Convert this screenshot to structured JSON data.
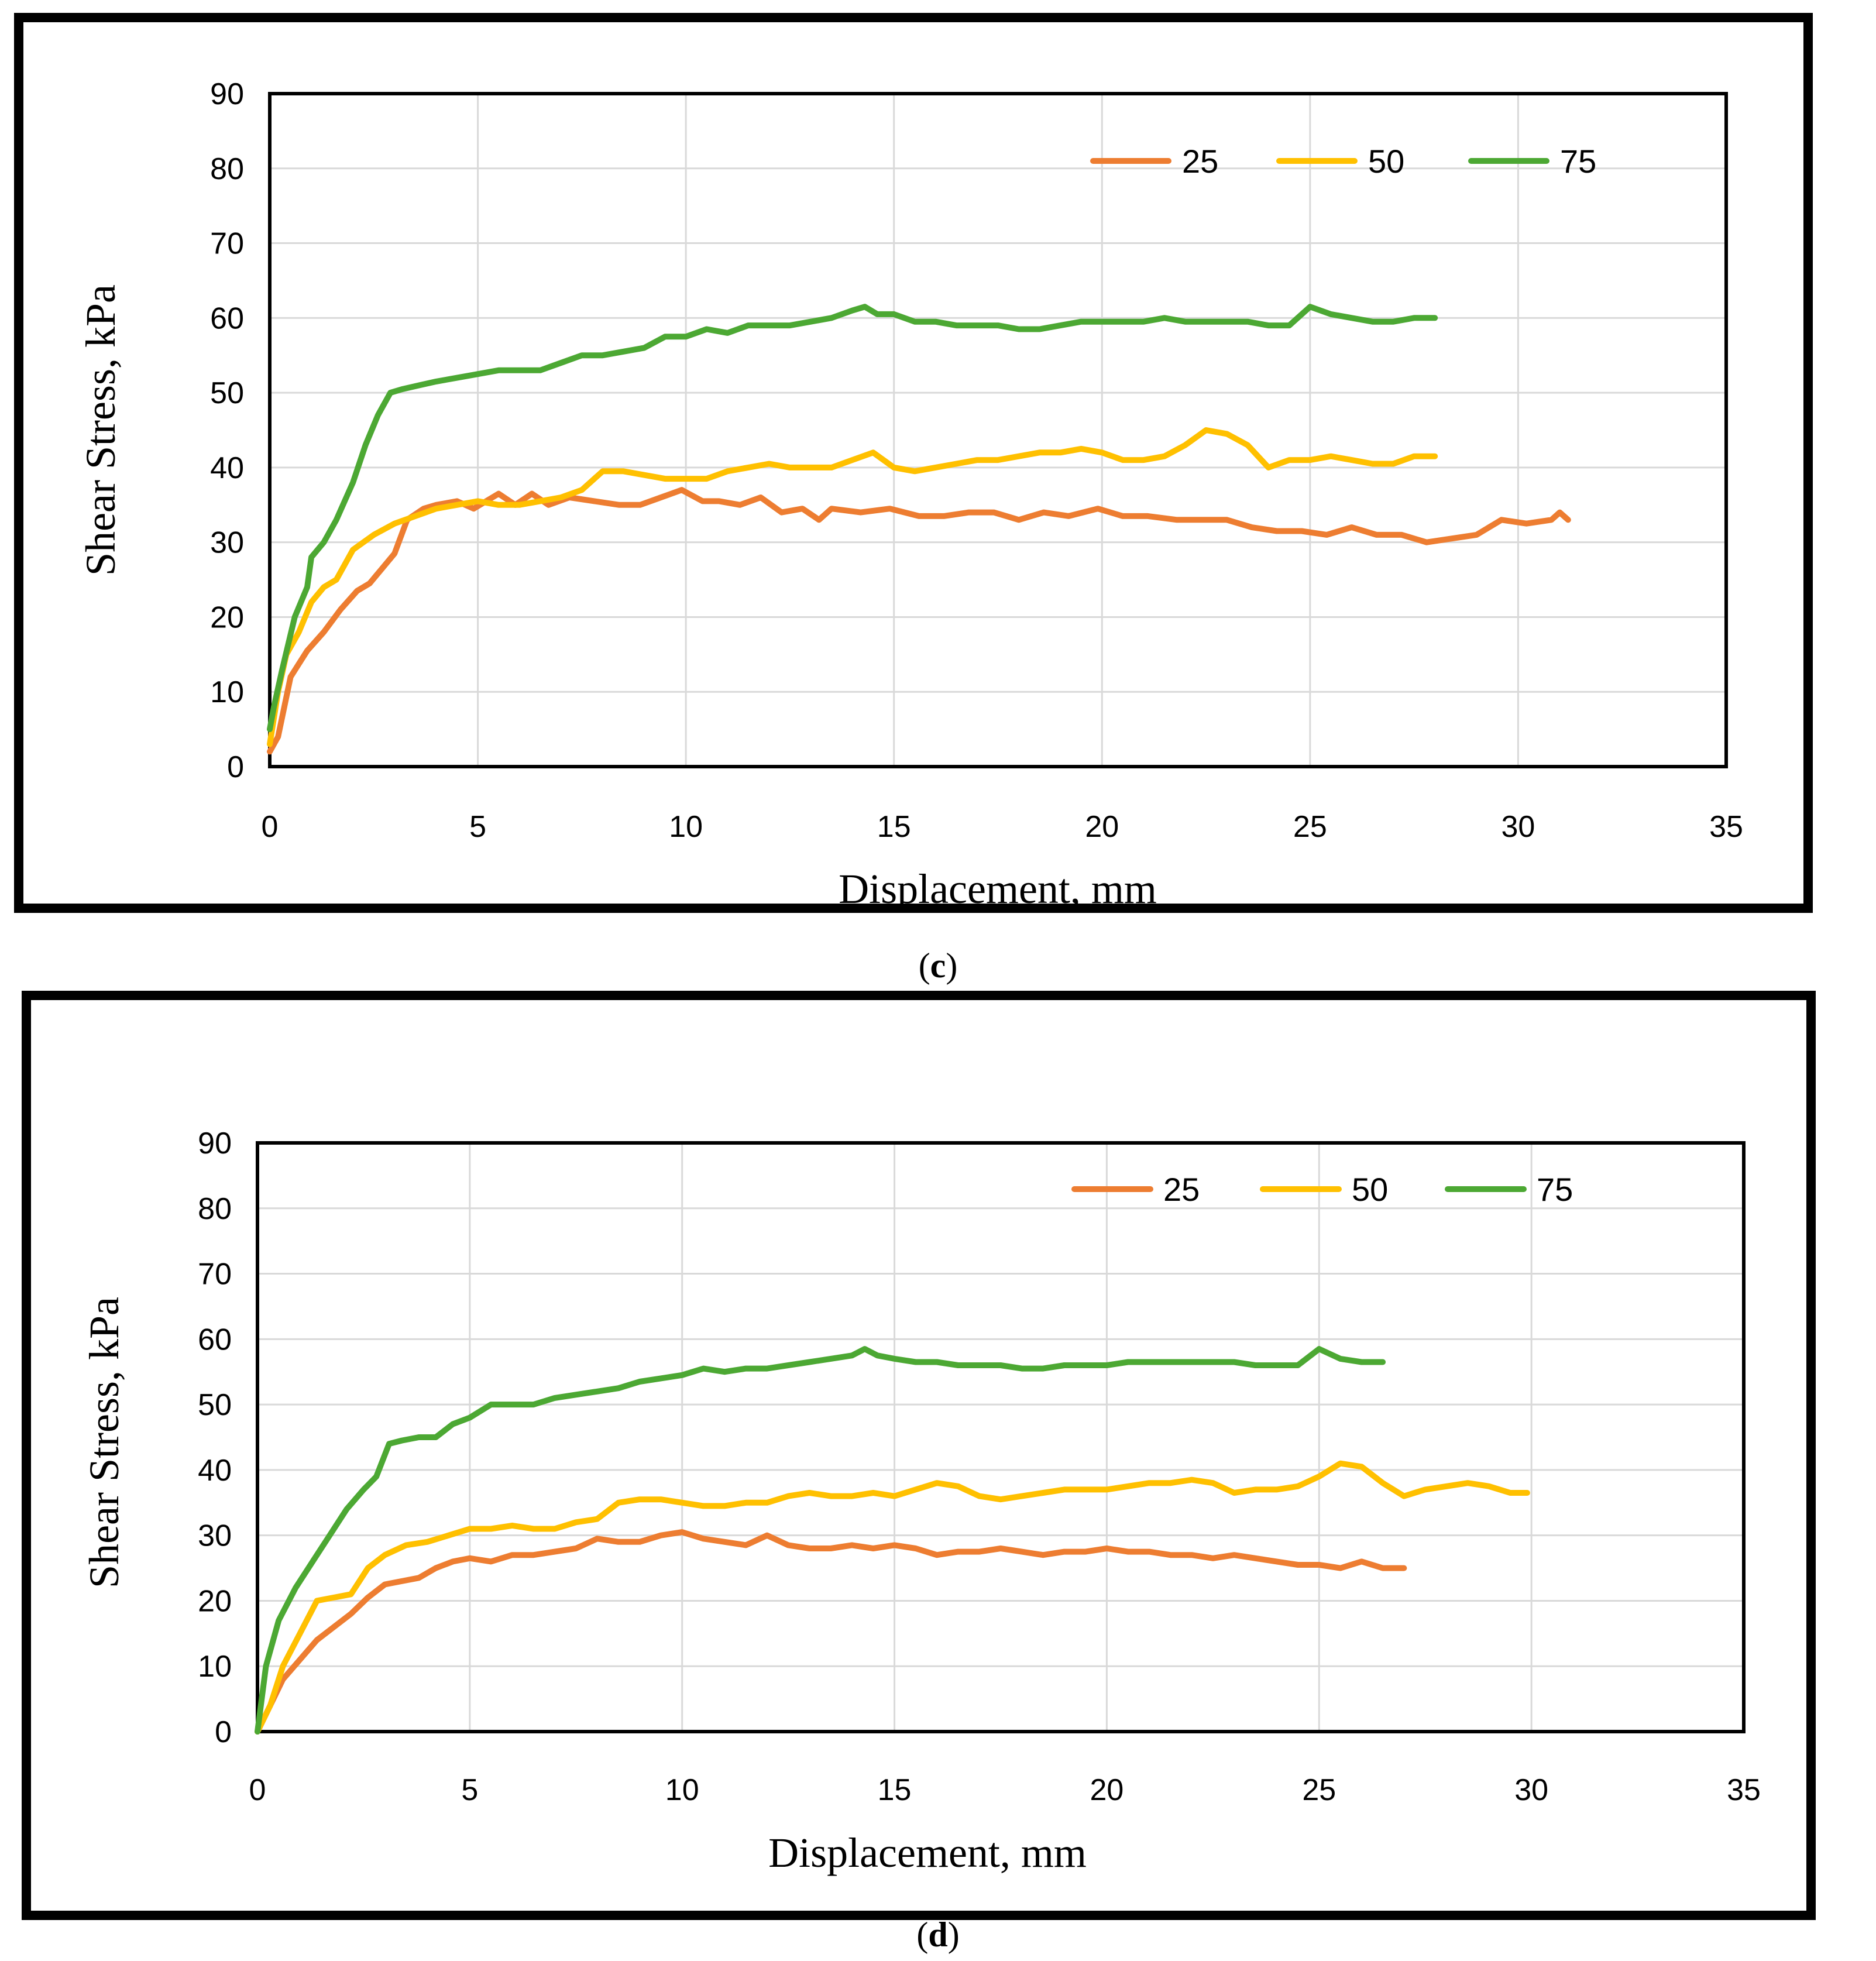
{
  "colors": {
    "s25": "#ED7D31",
    "s50": "#FFC000",
    "s75": "#4CA833"
  },
  "chart_data": [
    {
      "type": "line",
      "caption_open": "(",
      "caption_letter": "c",
      "caption_close": ")",
      "title": "",
      "xlabel": "Displacement, mm",
      "ylabel": "Shear Stress, kPa",
      "xlim": [
        0,
        35
      ],
      "ylim": [
        0,
        90
      ],
      "xticks": [
        "0",
        "5",
        "10",
        "15",
        "20",
        "25",
        "30",
        "35"
      ],
      "yticks": [
        "0",
        "10",
        "20",
        "30",
        "40",
        "50",
        "60",
        "70",
        "80",
        "90"
      ],
      "grid": "vertical and horizontal",
      "legend_position": "top-right",
      "series": [
        {
          "name": "25",
          "color": "#ED7D31",
          "x": [
            0,
            0.2,
            0.5,
            0.9,
            1.3,
            1.7,
            2.1,
            2.4,
            2.7,
            3.0,
            3.3,
            3.7,
            4.0,
            4.5,
            4.9,
            5.5,
            5.9,
            6.3,
            6.7,
            7.2,
            7.8,
            8.4,
            8.9,
            9.4,
            9.9,
            10.4,
            10.8,
            11.3,
            11.8,
            12.3,
            12.8,
            13.2,
            13.5,
            14.2,
            14.9,
            15.6,
            16.2,
            16.8,
            17.4,
            18.0,
            18.6,
            19.2,
            19.9,
            20.5,
            21.1,
            21.8,
            22.4,
            23.0,
            23.6,
            24.2,
            24.8,
            25.4,
            26.0,
            26.6,
            27.2,
            27.8,
            28.4,
            29.0,
            29.6,
            30.2,
            30.8,
            31.0,
            31.2
          ],
          "y": [
            2,
            4,
            12,
            15.5,
            18,
            21,
            23.5,
            24.5,
            26.5,
            28.5,
            33,
            34.5,
            35,
            35.5,
            34.5,
            36.5,
            35,
            36.5,
            35,
            36,
            35.5,
            35,
            35,
            36,
            37,
            35.5,
            35.5,
            35,
            36,
            34,
            34.5,
            33,
            34.5,
            34,
            34.5,
            33.5,
            33.5,
            34,
            34,
            33,
            34,
            33.5,
            34.5,
            33.5,
            33.5,
            33,
            33,
            33,
            32,
            31.5,
            31.5,
            31,
            32,
            31,
            31,
            30,
            30.5,
            31,
            33,
            32.5,
            33,
            34,
            33
          ]
        },
        {
          "name": "50",
          "color": "#FFC000",
          "x": [
            0,
            0.2,
            0.4,
            0.7,
            1.0,
            1.3,
            1.6,
            2.0,
            2.5,
            3.0,
            3.5,
            4.0,
            4.5,
            5.0,
            5.5,
            6.0,
            6.5,
            7.0,
            7.5,
            8.0,
            8.5,
            9.0,
            9.5,
            10.0,
            10.5,
            11.0,
            11.5,
            12.0,
            12.5,
            13.0,
            13.5,
            14.0,
            14.5,
            15.0,
            15.5,
            16.0,
            16.5,
            17.0,
            17.5,
            18.0,
            18.5,
            19.0,
            19.5,
            20.0,
            20.5,
            21.0,
            21.5,
            22.0,
            22.5,
            23.0,
            23.5,
            24.0,
            24.5,
            25.0,
            25.5,
            26.0,
            26.5,
            27.0,
            27.5,
            28.0
          ],
          "y": [
            3,
            10,
            15,
            18,
            22,
            24,
            25,
            29,
            31,
            32.5,
            33.5,
            34.5,
            35,
            35.5,
            35,
            35,
            35.5,
            36,
            37,
            39.5,
            39.5,
            39,
            38.5,
            38.5,
            38.5,
            39.5,
            40,
            40.5,
            40,
            40,
            40,
            41,
            42,
            40,
            39.5,
            40,
            40.5,
            41,
            41,
            41.5,
            42,
            42,
            42.5,
            42,
            41,
            41,
            41.5,
            43,
            45,
            44.5,
            43,
            40,
            41,
            41,
            41.5,
            41,
            40.5,
            40.5,
            41.5,
            41.5
          ]
        },
        {
          "name": "75",
          "color": "#4CA833",
          "x": [
            0,
            0.1,
            0.3,
            0.6,
            0.9,
            1.0,
            1.3,
            1.6,
            2.0,
            2.3,
            2.6,
            2.9,
            3.2,
            3.6,
            4.0,
            4.5,
            5.0,
            5.5,
            6.0,
            6.5,
            7.0,
            7.5,
            8.0,
            8.5,
            9.0,
            9.5,
            10.0,
            10.5,
            11.0,
            11.5,
            12.0,
            12.5,
            13.0,
            13.5,
            14.0,
            14.3,
            14.6,
            15.0,
            15.5,
            16.0,
            16.5,
            17.0,
            17.5,
            18.0,
            18.5,
            19.0,
            19.5,
            20.0,
            20.5,
            21.0,
            21.5,
            22.0,
            22.5,
            23.0,
            23.5,
            24.0,
            24.5,
            25.0,
            25.5,
            26.0,
            26.5,
            27.0,
            27.5,
            28.0
          ],
          "y": [
            5,
            8,
            13,
            20,
            24,
            28,
            30,
            33,
            38,
            43,
            47,
            50,
            50.5,
            51,
            51.5,
            52,
            52.5,
            53,
            53,
            53,
            54,
            55,
            55,
            55.5,
            56,
            57.5,
            57.5,
            58.5,
            58,
            59,
            59,
            59,
            59.5,
            60,
            61,
            61.5,
            60.5,
            60.5,
            59.5,
            59.5,
            59,
            59,
            59,
            58.5,
            58.5,
            59,
            59.5,
            59.5,
            59.5,
            59.5,
            60,
            59.5,
            59.5,
            59.5,
            59.5,
            59,
            59,
            61.5,
            60.5,
            60,
            59.5,
            59.5,
            60,
            60
          ]
        }
      ]
    },
    {
      "type": "line",
      "caption_open": "(",
      "caption_letter": "d",
      "caption_close": ")",
      "title": "",
      "xlabel": "Displacement, mm",
      "ylabel": "Shear Stress, kPa",
      "xlim": [
        0,
        35
      ],
      "ylim": [
        0,
        90
      ],
      "xticks": [
        "0",
        "5",
        "10",
        "15",
        "20",
        "25",
        "30",
        "35"
      ],
      "yticks": [
        "0",
        "10",
        "20",
        "30",
        "40",
        "50",
        "60",
        "70",
        "80",
        "90"
      ],
      "grid": "vertical and horizontal",
      "legend_position": "top-right",
      "series": [
        {
          "name": "25",
          "color": "#ED7D31",
          "x": [
            0,
            0.3,
            0.6,
            1.0,
            1.4,
            1.8,
            2.2,
            2.6,
            3.0,
            3.4,
            3.8,
            4.2,
            4.6,
            5.0,
            5.5,
            6.0,
            6.5,
            7.0,
            7.5,
            8.0,
            8.5,
            9.0,
            9.5,
            10.0,
            10.5,
            11.0,
            11.5,
            12.0,
            12.5,
            13.0,
            13.5,
            14.0,
            14.5,
            15.0,
            15.5,
            16.0,
            16.5,
            17.0,
            17.5,
            18.0,
            18.5,
            19.0,
            19.5,
            20.0,
            20.5,
            21.0,
            21.5,
            22.0,
            22.5,
            23.0,
            23.5,
            24.0,
            24.5,
            25.0,
            25.5,
            26.0,
            26.5,
            27.0
          ],
          "y": [
            0,
            4,
            8,
            11,
            14,
            16,
            18,
            20.5,
            22.5,
            23,
            23.5,
            25,
            26,
            26.5,
            26,
            27,
            27,
            27.5,
            28,
            29.5,
            29,
            29,
            30,
            30.5,
            29.5,
            29,
            28.5,
            30,
            28.5,
            28,
            28,
            28.5,
            28,
            28.5,
            28,
            27,
            27.5,
            27.5,
            28,
            27.5,
            27,
            27.5,
            27.5,
            28,
            27.5,
            27.5,
            27,
            27,
            26.5,
            27,
            26.5,
            26,
            25.5,
            25.5,
            25,
            26,
            25,
            25
          ]
        },
        {
          "name": "50",
          "color": "#FFC000",
          "x": [
            0,
            0.3,
            0.6,
            1.0,
            1.4,
            1.8,
            2.2,
            2.6,
            3.0,
            3.5,
            4.0,
            4.5,
            5.0,
            5.5,
            6.0,
            6.5,
            7.0,
            7.5,
            8.0,
            8.5,
            9.0,
            9.5,
            10.0,
            10.5,
            11.0,
            11.5,
            12.0,
            12.5,
            13.0,
            13.5,
            14.0,
            14.5,
            15.0,
            15.5,
            16.0,
            16.5,
            17.0,
            17.5,
            18.0,
            18.5,
            19.0,
            19.5,
            20.0,
            20.5,
            21.0,
            21.5,
            22.0,
            22.5,
            23.0,
            23.5,
            24.0,
            24.5,
            25.0,
            25.5,
            26.0,
            26.5,
            27.0,
            27.5,
            28.0,
            28.5,
            29.0,
            29.5,
            29.9
          ],
          "y": [
            0,
            4,
            10,
            15,
            20,
            20.5,
            21,
            25,
            27,
            28.5,
            29,
            30,
            31,
            31,
            31.5,
            31,
            31,
            32,
            32.5,
            35,
            35.5,
            35.5,
            35,
            34.5,
            34.5,
            35,
            35,
            36,
            36.5,
            36,
            36,
            36.5,
            36,
            37,
            38,
            37.5,
            36,
            35.5,
            36,
            36.5,
            37,
            37,
            37,
            37.5,
            38,
            38,
            38.5,
            38,
            36.5,
            37,
            37,
            37.5,
            39,
            41,
            40.5,
            38,
            36,
            37,
            37.5,
            38,
            37.5,
            36.5,
            36.5
          ]
        },
        {
          "name": "75",
          "color": "#4CA833",
          "x": [
            0,
            0.2,
            0.5,
            0.9,
            1.3,
            1.7,
            2.1,
            2.5,
            2.8,
            3.1,
            3.4,
            3.8,
            4.2,
            4.6,
            5.0,
            5.5,
            6.0,
            6.5,
            7.0,
            7.5,
            8.0,
            8.5,
            9.0,
            9.5,
            10.0,
            10.5,
            11.0,
            11.5,
            12.0,
            12.5,
            13.0,
            13.5,
            14.0,
            14.3,
            14.6,
            15.0,
            15.5,
            16.0,
            16.5,
            17.0,
            17.5,
            18.0,
            18.5,
            19.0,
            19.5,
            20.0,
            20.5,
            21.0,
            21.5,
            22.0,
            22.5,
            23.0,
            23.5,
            24.0,
            24.5,
            25.0,
            25.5,
            26.0,
            26.5
          ],
          "y": [
            0,
            10,
            17,
            22,
            26,
            30,
            34,
            37,
            39,
            44,
            44.5,
            45,
            45,
            47,
            48,
            50,
            50,
            50,
            51,
            51.5,
            52,
            52.5,
            53.5,
            54,
            54.5,
            55.5,
            55,
            55.5,
            55.5,
            56,
            56.5,
            57,
            57.5,
            58.5,
            57.5,
            57,
            56.5,
            56.5,
            56,
            56,
            56,
            55.5,
            55.5,
            56,
            56,
            56,
            56.5,
            56.5,
            56.5,
            56.5,
            56.5,
            56.5,
            56,
            56,
            56,
            58.5,
            57,
            56.5,
            56.5
          ]
        }
      ]
    }
  ]
}
